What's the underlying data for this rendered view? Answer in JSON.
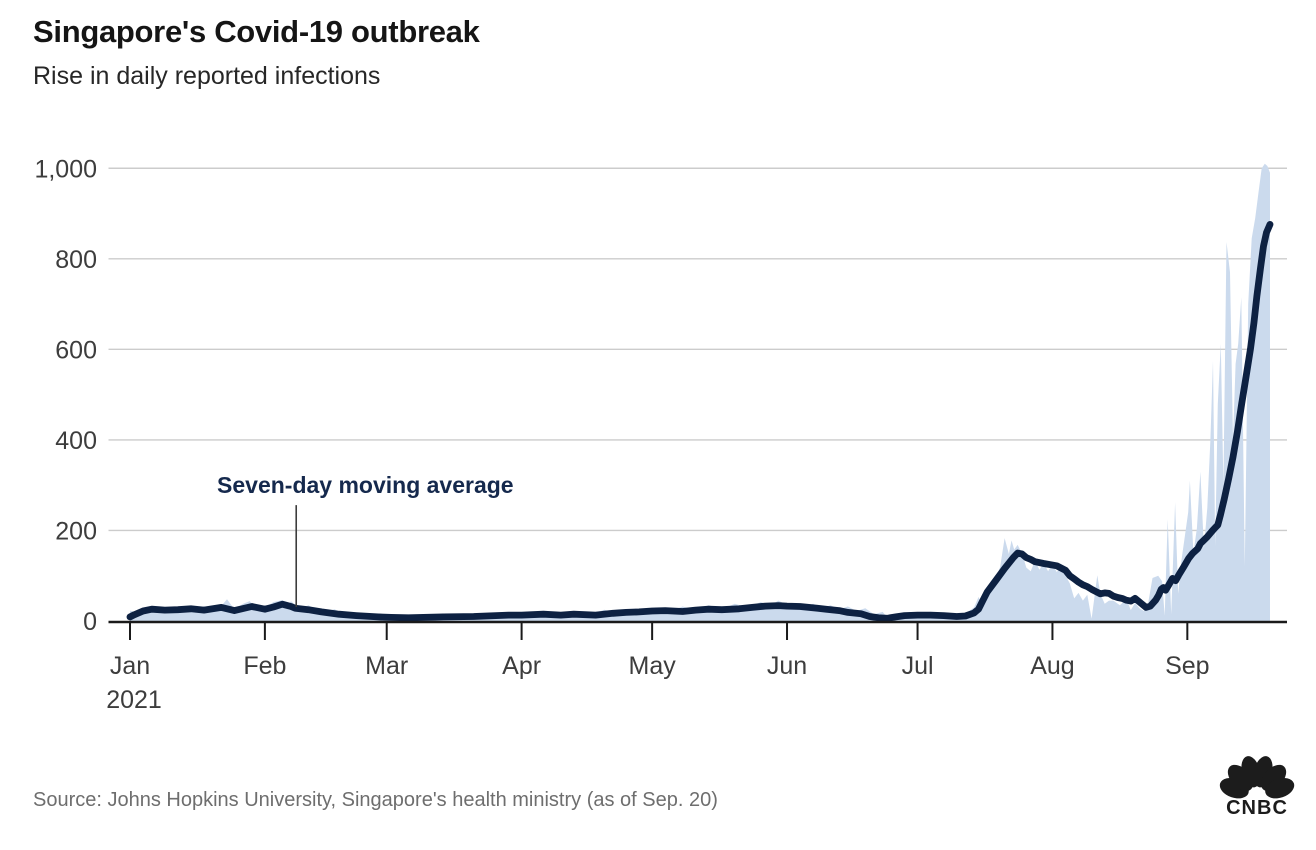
{
  "header": {
    "title": "Singapore's Covid-19 outbreak",
    "subtitle": "Rise in daily reported infections"
  },
  "footer": {
    "source": "Source: Johns Hopkins University, Singapore's health ministry (as of Sep. 20)",
    "logo_text": "CNBC"
  },
  "colors": {
    "area": "#cbdaed",
    "line": "#0d2142",
    "annotation_text": "#15294d",
    "annotation_pointer": "#3c3c3c",
    "grid": "#cccccc",
    "axis": "#1a1a1a",
    "tick_label": "#3d3d3d",
    "logo": "#1c1c1c"
  },
  "chart_data": {
    "type": "area+line",
    "title": "Singapore's Covid-19 outbreak",
    "subtitle": "Rise in daily reported infections",
    "x_unit": "days since 2021-01-01",
    "x_domain_days": [
      0,
      262
    ],
    "x_end_date": "Sep. 20, 2021",
    "ylim": [
      0,
      1050
    ],
    "grid": true,
    "legend_position": "none",
    "x_ticks": [
      {
        "day": 0,
        "label": "Jan",
        "sublabel": "2021"
      },
      {
        "day": 31,
        "label": "Feb"
      },
      {
        "day": 59,
        "label": "Mar"
      },
      {
        "day": 90,
        "label": "Apr"
      },
      {
        "day": 120,
        "label": "May"
      },
      {
        "day": 151,
        "label": "Jun"
      },
      {
        "day": 181,
        "label": "Jul"
      },
      {
        "day": 212,
        "label": "Aug"
      },
      {
        "day": 243,
        "label": "Sep"
      }
    ],
    "y_ticks": [
      {
        "value": 0,
        "label": "0"
      },
      {
        "value": 200,
        "label": "200"
      },
      {
        "value": 400,
        "label": "400"
      },
      {
        "value": 600,
        "label": "600"
      },
      {
        "value": 800,
        "label": "800"
      },
      {
        "value": 1000,
        "label": "1,000"
      }
    ],
    "annotation": {
      "text": "Seven-day moving average",
      "text_day": 20,
      "text_value": 300,
      "pointer_day": 38.2,
      "pointer_value_top": 256,
      "pointer_value_bottom": 31
    },
    "series": [
      {
        "name": "Daily reported infections",
        "type": "area",
        "points": [
          [
            0,
            23
          ],
          [
            2,
            18
          ],
          [
            5,
            32
          ],
          [
            8,
            20
          ],
          [
            11,
            30
          ],
          [
            14,
            24
          ],
          [
            17,
            33
          ],
          [
            20,
            22
          ],
          [
            22.3,
            48
          ],
          [
            24,
            26
          ],
          [
            26,
            38
          ],
          [
            27.5,
            44
          ],
          [
            29,
            28
          ],
          [
            31,
            30
          ],
          [
            33,
            42
          ],
          [
            35,
            46
          ],
          [
            36,
            30
          ],
          [
            37,
            44
          ],
          [
            39,
            26
          ],
          [
            41,
            35
          ],
          [
            44,
            18
          ],
          [
            47,
            26
          ],
          [
            50,
            12
          ],
          [
            53,
            18
          ],
          [
            56,
            9
          ],
          [
            58,
            14
          ],
          [
            60,
            7
          ],
          [
            63,
            13
          ],
          [
            66,
            6
          ],
          [
            69,
            12
          ],
          [
            72,
            8
          ],
          [
            75,
            14
          ],
          [
            78,
            9
          ],
          [
            81,
            15
          ],
          [
            84,
            10
          ],
          [
            87,
            16
          ],
          [
            89,
            11
          ],
          [
            91,
            18
          ],
          [
            94,
            11
          ],
          [
            97,
            20
          ],
          [
            100,
            13
          ],
          [
            103,
            22
          ],
          [
            106,
            15
          ],
          [
            109,
            25
          ],
          [
            112,
            17
          ],
          [
            115,
            26
          ],
          [
            118,
            19
          ],
          [
            121,
            30
          ],
          [
            124,
            21
          ],
          [
            127,
            32
          ],
          [
            130,
            24
          ],
          [
            133,
            35
          ],
          [
            136,
            26
          ],
          [
            139,
            38
          ],
          [
            142,
            30
          ],
          [
            145,
            42
          ],
          [
            147,
            33
          ],
          [
            149,
            45
          ],
          [
            151,
            36
          ],
          [
            153,
            40
          ],
          [
            155,
            30
          ],
          [
            157,
            38
          ],
          [
            159,
            28
          ],
          [
            161,
            35
          ],
          [
            163,
            26
          ],
          [
            165,
            32
          ],
          [
            167,
            22
          ],
          [
            169,
            28
          ],
          [
            171,
            15
          ],
          [
            173,
            20
          ],
          [
            174,
            8
          ],
          [
            176,
            14
          ],
          [
            178,
            8
          ],
          [
            180,
            16
          ],
          [
            182,
            10
          ],
          [
            184,
            18
          ],
          [
            186,
            11
          ],
          [
            188,
            19
          ],
          [
            190,
            12
          ],
          [
            192,
            16
          ],
          [
            194,
            30
          ],
          [
            195,
            53
          ],
          [
            196,
            35
          ],
          [
            197,
            60
          ],
          [
            198,
            75
          ],
          [
            199,
            95
          ],
          [
            200,
            120
          ],
          [
            201,
            183
          ],
          [
            202,
            148
          ],
          [
            202.6,
            178
          ],
          [
            203.2,
            158
          ],
          [
            204,
            168
          ],
          [
            205,
            150
          ],
          [
            206,
            118
          ],
          [
            207,
            110
          ],
          [
            208,
            133
          ],
          [
            209,
            113
          ],
          [
            210,
            128
          ],
          [
            211,
            110
          ],
          [
            212,
            126
          ],
          [
            213,
            108
          ],
          [
            214,
            122
          ],
          [
            215,
            100
          ],
          [
            216,
            83
          ],
          [
            217,
            50
          ],
          [
            218,
            62
          ],
          [
            219,
            45
          ],
          [
            220,
            58
          ],
          [
            221,
            5
          ],
          [
            222.3,
            101
          ],
          [
            223,
            60
          ],
          [
            224,
            38
          ],
          [
            225,
            45
          ],
          [
            226,
            45
          ],
          [
            227.5,
            35
          ],
          [
            229,
            48
          ],
          [
            230,
            24
          ],
          [
            231,
            40
          ],
          [
            232,
            28
          ],
          [
            233,
            22
          ],
          [
            234,
            40
          ],
          [
            235,
            95
          ],
          [
            236.3,
            100
          ],
          [
            237.2,
            88
          ],
          [
            237.8,
            12
          ],
          [
            238.5,
            225
          ],
          [
            239.3,
            15
          ],
          [
            240.2,
            262
          ],
          [
            240.9,
            60
          ],
          [
            241.6,
            130
          ],
          [
            242.4,
            185
          ],
          [
            243.2,
            240
          ],
          [
            243.6,
            310
          ],
          [
            244.4,
            150
          ],
          [
            245.2,
            205
          ],
          [
            246,
            330
          ],
          [
            246.8,
            160
          ],
          [
            247.6,
            250
          ],
          [
            248.3,
            400
          ],
          [
            248.9,
            575
          ],
          [
            249.4,
            165
          ],
          [
            250,
            480
          ],
          [
            250.7,
            612
          ],
          [
            251.3,
            300
          ],
          [
            252,
            837
          ],
          [
            252.8,
            770
          ],
          [
            253.5,
            400
          ],
          [
            254.1,
            568
          ],
          [
            254.7,
            612
          ],
          [
            255.4,
            715
          ],
          [
            256.2,
            120
          ],
          [
            257,
            700
          ],
          [
            257.8,
            845
          ],
          [
            258.6,
            890
          ],
          [
            259.4,
            950
          ],
          [
            260.1,
            1000
          ],
          [
            260.8,
            1010
          ],
          [
            261.4,
            1005
          ],
          [
            262,
            990
          ]
        ]
      },
      {
        "name": "Seven-day moving average",
        "type": "line",
        "points": [
          [
            0,
            9
          ],
          [
            1,
            14
          ],
          [
            3,
            22
          ],
          [
            5,
            26
          ],
          [
            8,
            24
          ],
          [
            11,
            25
          ],
          [
            14,
            27
          ],
          [
            17,
            24
          ],
          [
            21,
            30
          ],
          [
            24,
            23
          ],
          [
            28,
            32
          ],
          [
            31,
            26
          ],
          [
            33,
            31
          ],
          [
            35,
            37
          ],
          [
            37,
            32
          ],
          [
            38,
            28
          ],
          [
            41,
            25
          ],
          [
            44,
            20
          ],
          [
            48,
            15
          ],
          [
            52,
            12
          ],
          [
            57,
            9
          ],
          [
            60,
            8
          ],
          [
            64,
            7
          ],
          [
            72,
            9
          ],
          [
            79,
            10
          ],
          [
            87,
            13
          ],
          [
            90,
            13
          ],
          [
            95,
            15
          ],
          [
            99,
            13
          ],
          [
            102,
            15
          ],
          [
            107,
            13
          ],
          [
            111,
            17
          ],
          [
            114,
            19
          ],
          [
            117,
            20
          ],
          [
            120,
            22
          ],
          [
            123,
            23
          ],
          [
            127,
            21
          ],
          [
            130,
            24
          ],
          [
            133,
            26
          ],
          [
            136,
            25
          ],
          [
            140,
            27
          ],
          [
            143,
            30
          ],
          [
            146,
            33
          ],
          [
            149,
            34
          ],
          [
            151,
            33
          ],
          [
            154,
            32
          ],
          [
            158,
            28
          ],
          [
            160,
            26
          ],
          [
            163,
            23
          ],
          [
            165,
            19
          ],
          [
            168,
            16
          ],
          [
            170,
            10
          ],
          [
            172,
            7
          ],
          [
            174,
            6
          ],
          [
            176,
            9
          ],
          [
            178,
            12
          ],
          [
            181,
            13
          ],
          [
            184,
            13
          ],
          [
            187,
            12
          ],
          [
            190,
            10
          ],
          [
            192,
            11
          ],
          [
            194,
            18
          ],
          [
            195,
            26
          ],
          [
            196,
            45
          ],
          [
            197,
            64
          ],
          [
            199,
            90
          ],
          [
            201,
            116
          ],
          [
            203,
            140
          ],
          [
            204,
            150
          ],
          [
            205,
            148
          ],
          [
            206,
            140
          ],
          [
            207,
            136
          ],
          [
            208,
            131
          ],
          [
            210,
            127
          ],
          [
            213,
            122
          ],
          [
            215,
            112
          ],
          [
            216,
            100
          ],
          [
            217,
            93
          ],
          [
            218,
            86
          ],
          [
            219,
            80
          ],
          [
            220,
            76
          ],
          [
            221,
            70
          ],
          [
            222,
            65
          ],
          [
            223,
            60
          ],
          [
            224,
            62
          ],
          [
            225,
            61
          ],
          [
            226,
            55
          ],
          [
            227,
            52
          ],
          [
            228,
            50
          ],
          [
            229,
            46
          ],
          [
            230,
            44
          ],
          [
            231,
            50
          ],
          [
            232,
            42
          ],
          [
            233.5,
            30
          ],
          [
            234.5,
            33
          ],
          [
            235.7,
            46
          ],
          [
            236.4,
            57
          ],
          [
            237,
            70
          ],
          [
            237.5,
            74
          ],
          [
            238,
            68
          ],
          [
            238.7,
            79
          ],
          [
            239.6,
            94
          ],
          [
            240.3,
            89
          ],
          [
            241,
            101
          ],
          [
            242.2,
            120
          ],
          [
            243.3,
            138
          ],
          [
            244.2,
            149
          ],
          [
            245.4,
            160
          ],
          [
            246,
            171
          ],
          [
            247.6,
            186
          ],
          [
            248.8,
            200
          ],
          [
            249.4,
            206
          ],
          [
            250,
            212
          ],
          [
            250.6,
            234
          ],
          [
            251.5,
            270
          ],
          [
            252.5,
            315
          ],
          [
            253.5,
            362
          ],
          [
            254.5,
            418
          ],
          [
            255.5,
            480
          ],
          [
            256.5,
            540
          ],
          [
            257.5,
            600
          ],
          [
            258.3,
            658
          ],
          [
            259,
            718
          ],
          [
            259.8,
            778
          ],
          [
            260.5,
            828
          ],
          [
            261.2,
            858
          ],
          [
            262,
            876
          ]
        ]
      }
    ]
  }
}
